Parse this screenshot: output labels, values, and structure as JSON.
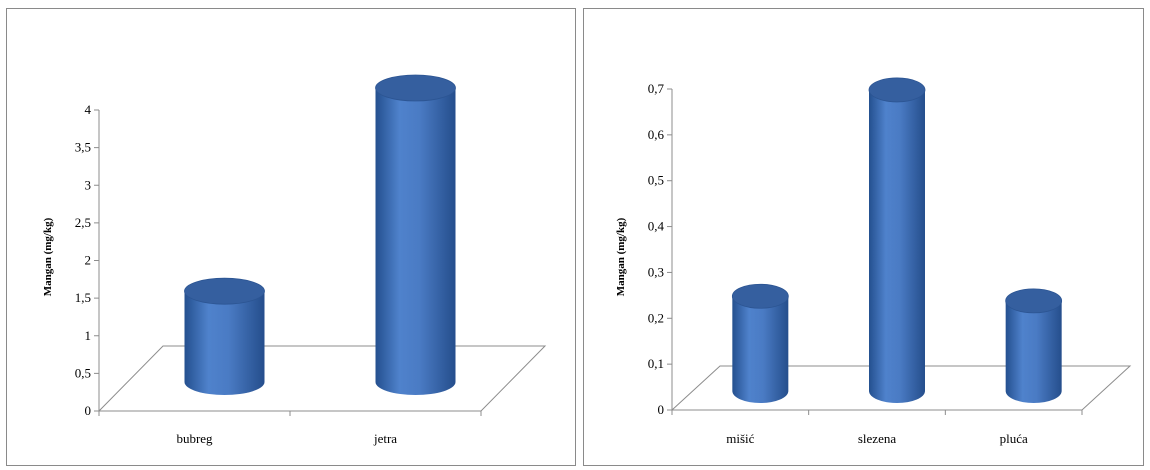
{
  "chart_data": [
    {
      "type": "bar",
      "style": "3d-cylinder",
      "categories": [
        "bubreg",
        "jetra"
      ],
      "values": [
        1.3,
        4.0
      ],
      "ylabel": "Mangan (mg/kg)",
      "ylim": [
        0,
        4
      ],
      "yticks": [
        "0",
        "0,5",
        "1",
        "1,5",
        "2",
        "2,5",
        "3",
        "3,5",
        "4"
      ],
      "grid": false,
      "color": "#3f6fb9"
    },
    {
      "type": "bar",
      "style": "3d-cylinder",
      "categories": [
        "mišić",
        "slezena",
        "pluća"
      ],
      "values": [
        0.2,
        0.65,
        0.19
      ],
      "ylabel": "Mangan (mg/kg)",
      "ylim": [
        0,
        0.7
      ],
      "yticks": [
        "0",
        "0,1",
        "0,2",
        "0,3",
        "0,4",
        "0,5",
        "0,6",
        "0,7"
      ],
      "grid": false,
      "color": "#3f6fb9"
    }
  ]
}
